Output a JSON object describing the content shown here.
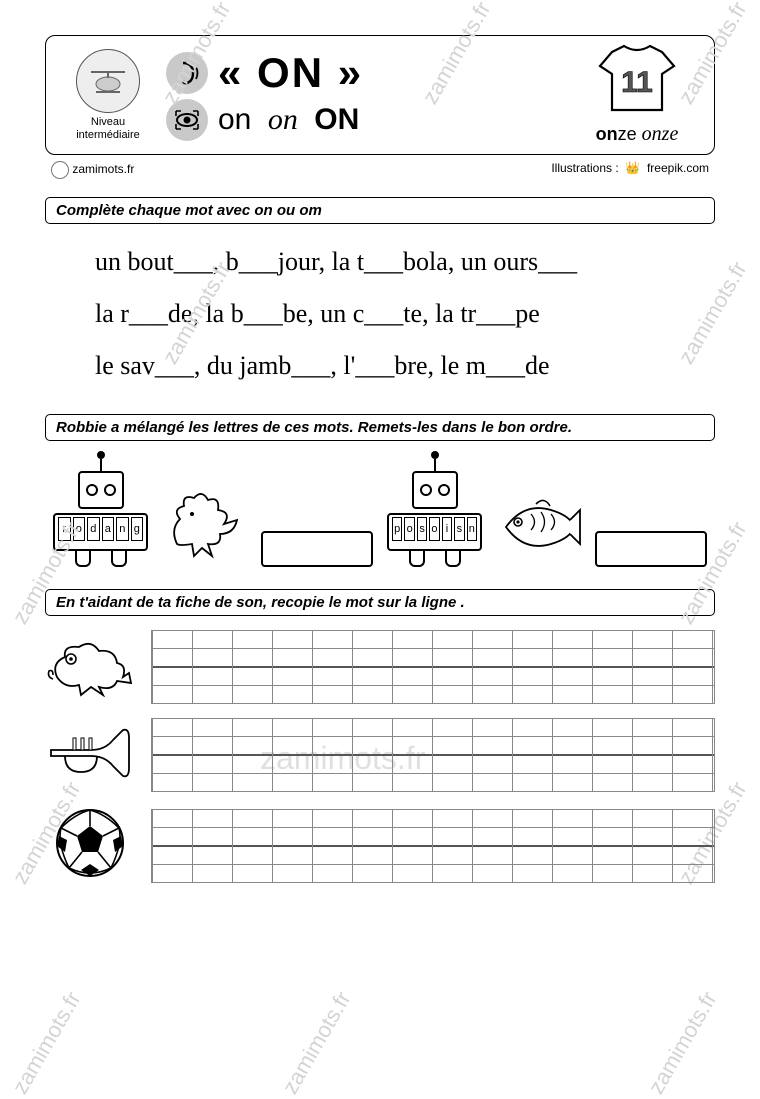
{
  "header": {
    "level_label": "Niveau\nintermédiaire",
    "sound_quoted": "« ON »",
    "variant_print": "on",
    "variant_cursive": "on",
    "variant_caps": "ON",
    "shirt_number": "11",
    "onze_print": "on",
    "onze_print2": "ze",
    "onze_cursive": "onze"
  },
  "credits": {
    "site": "zamimots.fr",
    "illus_label": "Illustrations :",
    "illus_src": "freepik.com"
  },
  "ex1": {
    "instruction": "Complète chaque mot avec on ou om",
    "line1": "un bout___,  b___jour,  la t___bola,  un ours___",
    "line2": "la r___de,  la b___be,  un c___te,  la tr___pe",
    "line3": "le sav___,  du jamb___,  l'___bre,  le m___de"
  },
  "ex2": {
    "instruction": "Robbie a mélangé les lettres de ces mots. Remets-les dans le bon ordre.",
    "letters1": [
      "r",
      "o",
      "d",
      "a",
      "n",
      "g"
    ],
    "letters2": [
      "p",
      "o",
      "s",
      "o",
      "i",
      "s",
      "n"
    ]
  },
  "ex3": {
    "instruction": "En t'aidant de ta fiche de son, recopie le mot sur la ligne ."
  },
  "watermark_text": "zamimots.fr"
}
